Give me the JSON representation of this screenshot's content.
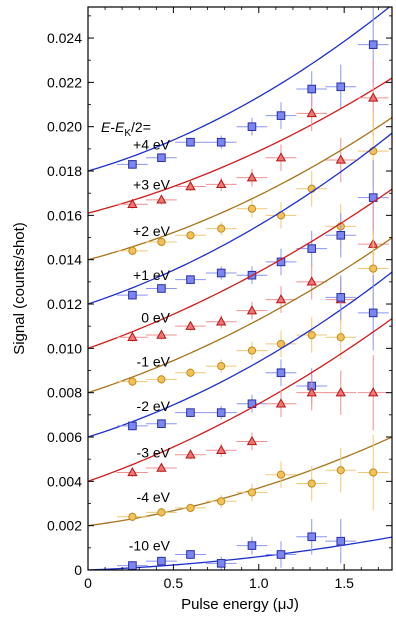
{
  "chart_data": {
    "type": "scatter",
    "xlabel": "Pulse energy (μJ)",
    "ylabel": "Signal (counts/shot)",
    "xlim": [
      0,
      1.78
    ],
    "ylim": [
      0,
      0.0254
    ],
    "x_ticks": [
      0,
      0.5,
      1.0,
      1.5
    ],
    "x_tick_labels": [
      "0",
      "0.5",
      "1.0",
      "1.5"
    ],
    "y_ticks": [
      0,
      0.002,
      0.004,
      0.006,
      0.008,
      0.01,
      0.012,
      0.014,
      0.016,
      0.018,
      0.02,
      0.022,
      0.024
    ],
    "y_tick_labels": [
      "0",
      "0.002",
      "0.004",
      "0.006",
      "0.008",
      "0.010",
      "0.012",
      "0.014",
      "0.016",
      "0.018",
      "0.020",
      "0.022",
      "0.024"
    ],
    "x_error": 0.09,
    "annotation_header_parts": [
      "E",
      "-",
      "E",
      "K",
      "/2="
    ],
    "colors": {
      "blue_line": "#1d2fcf",
      "blue_fill": "#7b86f0",
      "blue_edge": "#2a2fa8",
      "blue_err": "#8c95f2",
      "red_line": "#d41a1a",
      "red_fill": "#f07575",
      "red_edge": "#b81414",
      "red_err": "#f09090",
      "gold_line": "#a8731a",
      "gold_fill": "#f2c25a",
      "gold_edge": "#c48a1c",
      "gold_err": "#f0c878"
    },
    "series": [
      {
        "name": "+4 eV",
        "marker": "square",
        "color": "blue",
        "fit": [
          0.018,
          0.00225,
          0.0011
        ],
        "x": [
          0.26,
          0.43,
          0.6,
          0.78,
          0.96,
          1.13,
          1.31,
          1.48,
          1.67
        ],
        "y": [
          0.0183,
          0.0186,
          0.0193,
          0.0193,
          0.02,
          0.0205,
          0.0217,
          0.0218,
          0.0237
        ],
        "yerr": [
          0.0002,
          0.0002,
          0.0002,
          0.0003,
          0.0004,
          0.0006,
          0.0008,
          0.001,
          0.0017
        ]
      },
      {
        "name": "+3 eV",
        "marker": "triangle",
        "color": "red",
        "fit": [
          0.0161,
          0.002,
          0.0008
        ],
        "x": [
          0.26,
          0.43,
          0.6,
          0.78,
          0.96,
          1.13,
          1.31,
          1.48,
          1.67
        ],
        "y": [
          0.0165,
          0.0167,
          0.0173,
          0.0174,
          0.0177,
          0.0186,
          0.0206,
          0.0185,
          0.0213
        ],
        "yerr": [
          0.0002,
          0.0002,
          0.0002,
          0.0003,
          0.0004,
          0.0006,
          0.0008,
          0.001,
          0.0017
        ]
      },
      {
        "name": "+2 eV",
        "marker": "circle",
        "color": "gold",
        "fit": [
          0.014,
          0.002,
          0.0009
        ],
        "x": [
          0.26,
          0.43,
          0.6,
          0.78,
          0.96,
          1.13,
          1.31,
          1.48,
          1.67
        ],
        "y": [
          0.0144,
          0.0148,
          0.0151,
          0.0154,
          0.0163,
          0.016,
          0.0172,
          0.0155,
          0.0189
        ],
        "yerr": [
          0.0002,
          0.0002,
          0.0002,
          0.0003,
          0.0004,
          0.0006,
          0.0008,
          0.001,
          0.0017
        ]
      },
      {
        "name": "+1 eV",
        "marker": "square",
        "color": "blue",
        "fit": [
          0.012,
          0.00255,
          0.001
        ],
        "x": [
          0.26,
          0.43,
          0.6,
          0.78,
          0.96,
          1.13,
          1.31,
          1.48,
          1.67
        ],
        "y": [
          0.0124,
          0.0127,
          0.0131,
          0.0134,
          0.0133,
          0.0139,
          0.0145,
          0.0151,
          0.0168
        ],
        "yerr": [
          0.0002,
          0.0002,
          0.0002,
          0.0003,
          0.0004,
          0.0006,
          0.0008,
          0.001,
          0.0017
        ]
      },
      {
        "name": "0 eV",
        "marker": "triangle",
        "color": "red",
        "fit": [
          0.01,
          0.0027,
          0.00075
        ],
        "x": [
          0.26,
          0.43,
          0.6,
          0.78,
          0.96,
          1.13,
          1.31,
          1.48,
          1.67
        ],
        "y": [
          0.0105,
          0.0106,
          0.011,
          0.0112,
          0.0117,
          0.0122,
          0.013,
          0.0122,
          0.0147
        ],
        "yerr": [
          0.0002,
          0.0002,
          0.0002,
          0.0003,
          0.0004,
          0.0006,
          0.0008,
          0.001,
          0.0017
        ]
      },
      {
        "name": "-1 eV",
        "marker": "circle",
        "color": "gold",
        "fit": [
          0.008,
          0.0025,
          0.0008
        ],
        "x": [
          0.26,
          0.43,
          0.6,
          0.78,
          0.96,
          1.13,
          1.31,
          1.48,
          1.67
        ],
        "y": [
          0.0085,
          0.0086,
          0.0089,
          0.0092,
          0.0099,
          0.0102,
          0.0106,
          0.0105,
          0.0136
        ],
        "yerr": [
          0.0002,
          0.0002,
          0.0002,
          0.0003,
          0.0004,
          0.0006,
          0.0008,
          0.001,
          0.0017
        ]
      },
      {
        "name": "-2 eV",
        "marker": "square",
        "color": "blue",
        "fit": [
          0.006,
          0.0024,
          0.001
        ],
        "x": [
          0.26,
          0.43,
          0.6,
          0.78,
          0.96,
          1.13,
          1.31,
          1.48,
          1.67
        ],
        "y": [
          0.0065,
          0.0066,
          0.0071,
          0.0071,
          0.0075,
          0.0089,
          0.0083,
          0.0123,
          0.0116
        ],
        "yerr": [
          0.0002,
          0.0002,
          0.0002,
          0.0003,
          0.0004,
          0.0006,
          0.0008,
          0.001,
          0.0017
        ]
      },
      {
        "name": "-3 eV",
        "marker": "triangle",
        "color": "red",
        "fit": [
          0.004,
          0.0027,
          0.0008
        ],
        "x": [
          0.26,
          0.43,
          0.6,
          0.78,
          0.96,
          1.13,
          1.31,
          1.48,
          1.67
        ],
        "y": [
          0.0044,
          0.0046,
          0.0052,
          0.0054,
          0.0058,
          0.0075,
          0.008,
          0.008,
          0.008
        ],
        "yerr": [
          0.0002,
          0.0002,
          0.0002,
          0.0003,
          0.0004,
          0.0006,
          0.0008,
          0.001,
          0.0017
        ]
      },
      {
        "name": "-4 eV",
        "marker": "circle",
        "color": "gold",
        "fit": [
          0.002,
          0.001,
          0.0007
        ],
        "x": [
          0.26,
          0.43,
          0.6,
          0.78,
          0.96,
          1.13,
          1.31,
          1.48,
          1.67
        ],
        "y": [
          0.0024,
          0.0026,
          0.0028,
          0.0031,
          0.0035,
          0.0043,
          0.0039,
          0.0045,
          0.0044
        ],
        "yerr": [
          0.0002,
          0.0002,
          0.0002,
          0.0003,
          0.0004,
          0.0006,
          0.0008,
          0.001,
          0.0017
        ]
      },
      {
        "name": "-10 eV",
        "marker": "square",
        "color": "blue",
        "fit": [
          0.0,
          0.0003,
          0.0003
        ],
        "x": [
          0.26,
          0.43,
          0.6,
          0.78,
          0.96,
          1.13,
          1.31,
          1.48
        ],
        "y": [
          0.0002,
          0.0004,
          0.0007,
          0.0003,
          0.0011,
          0.0007,
          0.0015,
          0.0013
        ],
        "yerr": [
          0.0002,
          0.0002,
          0.0002,
          0.0003,
          0.0004,
          0.0006,
          0.0008,
          0.001
        ]
      }
    ]
  }
}
